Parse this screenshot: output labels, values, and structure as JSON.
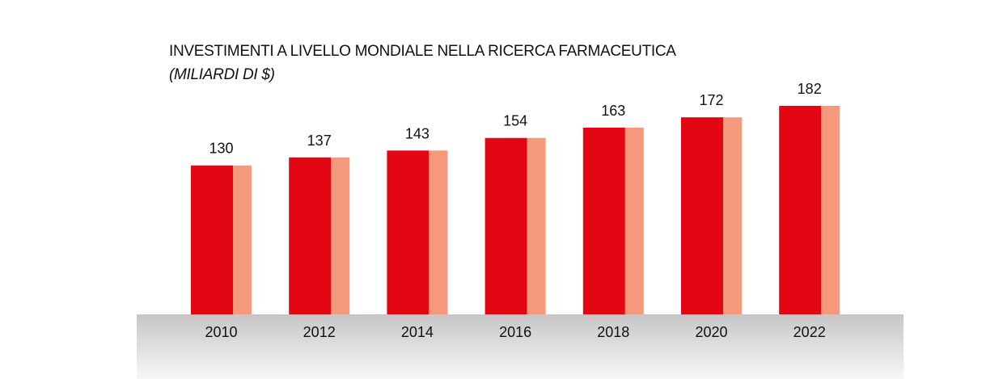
{
  "chart_data": {
    "type": "bar",
    "title": "INVESTIMENTI A LIVELLO MONDIALE NELLA RICERCA FARMACEUTICA",
    "subtitle": "(MILIARDI DI $)",
    "categories": [
      "2010",
      "2012",
      "2014",
      "2016",
      "2018",
      "2020",
      "2022"
    ],
    "values": [
      130,
      137,
      143,
      154,
      163,
      172,
      182
    ],
    "ylim": [
      0,
      182
    ],
    "grid": false,
    "legend": "none",
    "colors": {
      "bar_front": "#e30613",
      "bar_side": "#f4997b",
      "floor_top": "#c6c6c6",
      "floor_bottom": "#f7f7f7"
    }
  }
}
